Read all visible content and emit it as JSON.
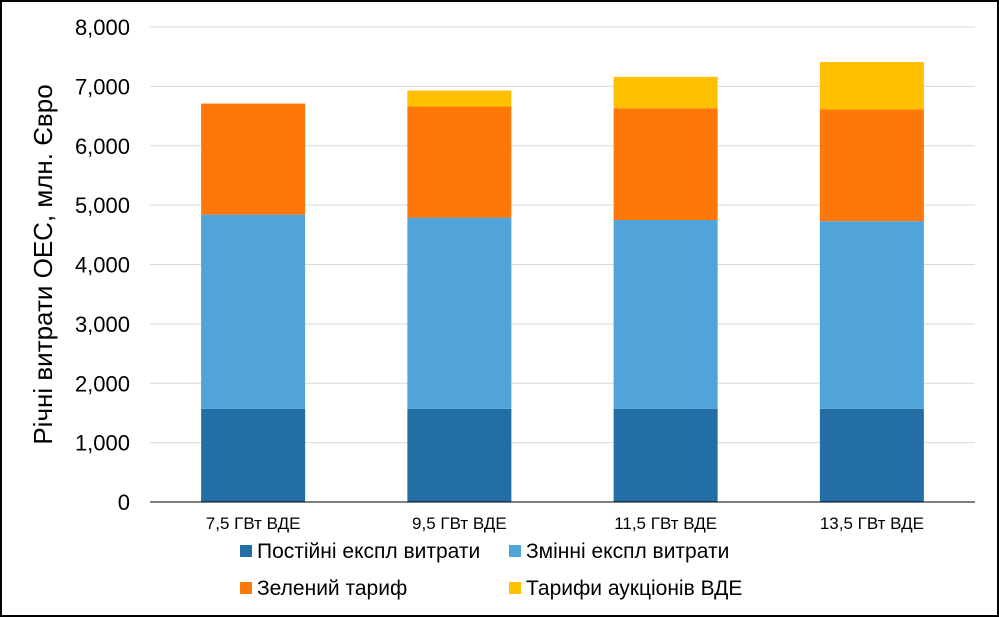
{
  "chart_data": {
    "type": "bar",
    "stacked": true,
    "categories": [
      "7,5 ГВт ВДЕ",
      "9,5 ГВт ВДЕ",
      "11,5 ГВт ВДЕ",
      "13,5 ГВт ВДЕ"
    ],
    "series": [
      {
        "name": "Постійні експл витрати",
        "color": "#246EA6",
        "values": [
          1570,
          1570,
          1570,
          1570
        ]
      },
      {
        "name": "Змінні експл витрати",
        "color": "#50A4DA",
        "values": [
          3270,
          3220,
          3180,
          3160
        ]
      },
      {
        "name": "Зелений тариф",
        "color": "#FF7708",
        "values": [
          1870,
          1870,
          1880,
          1880
        ]
      },
      {
        "name": "Тарифи аукціонів ВДЕ",
        "color": "#FFC000",
        "values": [
          0,
          270,
          530,
          800
        ]
      }
    ],
    "ylabel": "Річні витрати ОЕС, млн. Євро",
    "xlabel": "",
    "ylim": [
      0,
      8000
    ],
    "yticks": [
      {
        "value": 0,
        "label": "0"
      },
      {
        "value": 1000,
        "label": "1,000"
      },
      {
        "value": 2000,
        "label": "2,000"
      },
      {
        "value": 3000,
        "label": "3,000"
      },
      {
        "value": 4000,
        "label": "4,000"
      },
      {
        "value": 5000,
        "label": "5,000"
      },
      {
        "value": 6000,
        "label": "6,000"
      },
      {
        "value": 7000,
        "label": "7,000"
      },
      {
        "value": 8000,
        "label": "8,000"
      }
    ],
    "grid": true,
    "legend_position": "bottom"
  }
}
